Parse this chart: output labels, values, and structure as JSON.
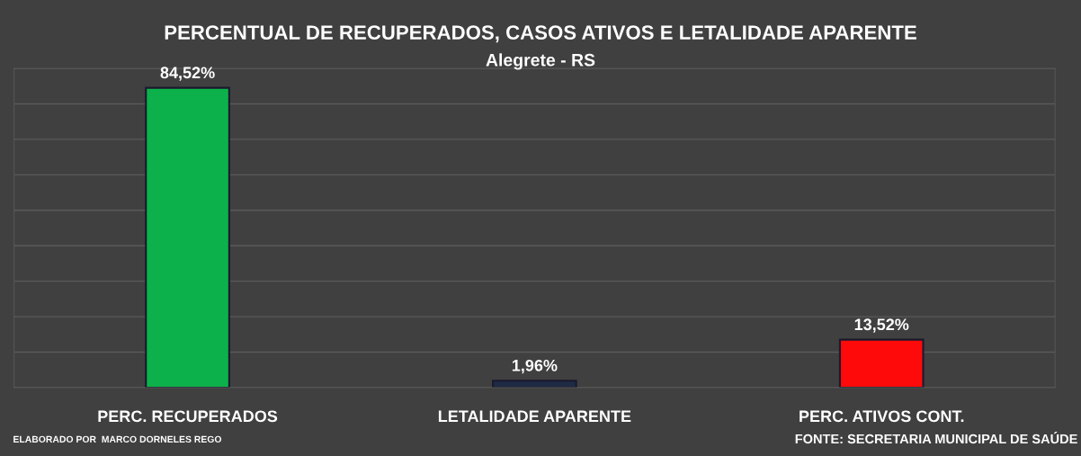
{
  "chart_data": {
    "type": "bar",
    "title": "PERCENTUAL DE RECUPERADOS, CASOS ATIVOS E LETALIDADE APARENTE",
    "subtitle": "Alegrete - RS",
    "categories": [
      "PERC. RECUPERADOS",
      "LETALIDADE APARENTE",
      "PERC. ATIVOS CONT."
    ],
    "values": [
      84.52,
      1.96,
      13.52
    ],
    "value_labels": [
      "84,52%",
      "1,96%",
      "13,52%"
    ],
    "colors": [
      "#0db14b",
      "#1f2a44",
      "#ff0a0a"
    ],
    "ylim": [
      0,
      90
    ],
    "yticks": [
      {
        "value": 0,
        "label": null
      },
      {
        "value": 10,
        "label": null
      },
      {
        "value": 20,
        "label": null
      },
      {
        "value": 30,
        "label": null
      },
      {
        "value": 40,
        "label": null
      },
      {
        "value": 50,
        "label": null
      },
      {
        "value": 60,
        "label": null
      },
      {
        "value": 70,
        "label": null
      },
      {
        "value": 80,
        "label": null
      },
      {
        "value": 90,
        "label": null
      }
    ],
    "grid": "y",
    "tick_labels": "x",
    "annotations": [
      "ELABORADO POR  MARCO DORNELES REGO",
      "FONTE: SECRETARIA MUNICIPAL DE SAÚDE"
    ]
  }
}
